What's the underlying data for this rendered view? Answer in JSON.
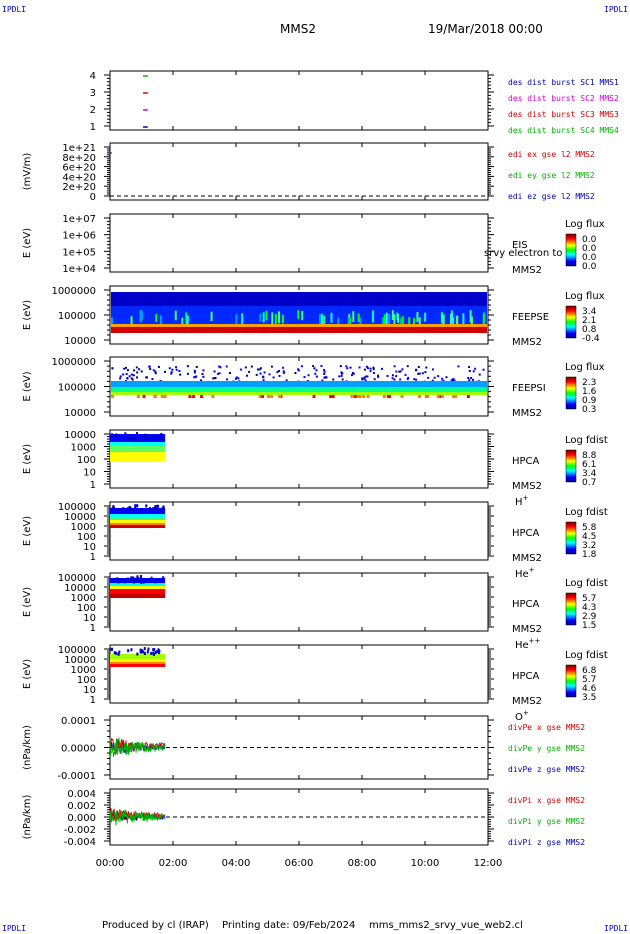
{
  "header": {
    "corner_tag": "IPDLI",
    "spacecraft": "MMS2",
    "date": "19/Mar/2018 00:00"
  },
  "footer": {
    "produced_by": "Produced by cl (IRAP)",
    "printing_date": "Printing date: 09/Feb/2024",
    "script": "mms_mms2_srvy_vue_web2.cl"
  },
  "colors": {
    "mms1": "#0000b0",
    "mms2": "#d000d0",
    "mms3": "#d00000",
    "mms4": "#00b000",
    "x": "#d00000",
    "y": "#00b000",
    "z": "#0000b0"
  },
  "chart_data": [
    {
      "type": "line",
      "ylim": [
        0.5,
        4.5
      ],
      "yticks": [
        "4",
        "3",
        "2",
        "1"
      ],
      "legend": [
        {
          "text": "des dist burst SC1 MMS1",
          "color": "mms1"
        },
        {
          "text": "des dist burst SC2 MMS2",
          "color": "mms2"
        },
        {
          "text": "des dist burst SC3 MMS3",
          "color": "mms3"
        },
        {
          "text": "des dist burst SC4 MMS4",
          "color": "mms4"
        }
      ],
      "series": [
        {
          "y": 4,
          "color": "mms4",
          "x": [
            1.05,
            1.2
          ]
        },
        {
          "y": 3,
          "color": "mms3",
          "x": [
            1.05,
            1.2
          ]
        },
        {
          "y": 2,
          "color": "mms2",
          "x": [
            1.05,
            1.2
          ]
        },
        {
          "y": 1,
          "color": "mms1",
          "x": [
            1.05,
            1.2
          ]
        }
      ]
    },
    {
      "type": "line",
      "ylabel": "(mV/m)",
      "yticks": [
        "1e+21",
        "8e+20",
        "6e+20",
        "4e+20",
        "2e+20",
        "0"
      ],
      "legend": [
        {
          "text": "edi ex gse l2 MMS2",
          "color": "x"
        },
        {
          "text": "edi ey gse l2 MMS2",
          "color": "y"
        },
        {
          "text": "edi ez gse l2 MMS2",
          "color": "z"
        }
      ]
    },
    {
      "type": "heatmap",
      "ylabel": "E (eV)",
      "yticks": [
        "1e+07",
        "1e+06",
        "1e+05",
        "1e+04"
      ],
      "instrument": "EIS",
      "overlap_text": "srvy electron to",
      "sc": "MMS2",
      "cbar_title": "Log flux",
      "cbar_ticks": [
        "0.0",
        "0.0",
        "0.0",
        "0.0"
      ]
    },
    {
      "type": "heatmap",
      "ylabel": "E (eV)",
      "yticks": [
        "1000000",
        "100000",
        "10000"
      ],
      "instrument": "FEEPSE",
      "sc": "MMS2",
      "cbar_title": "Log flux",
      "cbar_ticks": [
        "3.4",
        "2.1",
        "0.8",
        "-0.4"
      ]
    },
    {
      "type": "heatmap",
      "ylabel": "E (eV)",
      "yticks": [
        "1000000",
        "100000",
        "10000"
      ],
      "instrument": "FEEPSI",
      "sc": "MMS2",
      "cbar_title": "Log flux",
      "cbar_ticks": [
        "2.3",
        "1.6",
        "0.9",
        "0.3"
      ]
    },
    {
      "type": "heatmap",
      "ylabel": "E (eV)",
      "yticks": [
        "10000",
        "1000",
        "100",
        "10",
        "1"
      ],
      "instrument": "HPCA",
      "sc": "MMS2",
      "species": "H",
      "species_sup": "+",
      "cbar_title": "Log fdist",
      "cbar_ticks": [
        "8.8",
        "6.1",
        "3.4",
        "0.7"
      ]
    },
    {
      "type": "heatmap",
      "ylabel": "E (eV)",
      "yticks": [
        "100000",
        "10000",
        "1000",
        "100",
        "10",
        "1"
      ],
      "instrument": "HPCA",
      "sc": "MMS2",
      "species": "He",
      "species_sup": "+",
      "cbar_title": "Log fdist",
      "cbar_ticks": [
        "5.8",
        "4.5",
        "3.2",
        "1.8"
      ]
    },
    {
      "type": "heatmap",
      "ylabel": "E (eV)",
      "yticks": [
        "100000",
        "10000",
        "1000",
        "100",
        "10",
        "1"
      ],
      "instrument": "HPCA",
      "sc": "MMS2",
      "species": "He",
      "species_sup": "++",
      "cbar_title": "Log fdist",
      "cbar_ticks": [
        "5.7",
        "4.3",
        "2.9",
        "1.5"
      ]
    },
    {
      "type": "heatmap",
      "ylabel": "E (eV)",
      "yticks": [
        "100000",
        "10000",
        "1000",
        "100",
        "10",
        "1"
      ],
      "instrument": "HPCA",
      "sc": "MMS2",
      "species": "O",
      "species_sup": "+",
      "cbar_title": "Log fdist",
      "cbar_ticks": [
        "6.8",
        "5.7",
        "4.6",
        "3.5"
      ]
    },
    {
      "type": "line",
      "ylabel": "(nPa/km)",
      "ylim": [
        -0.00015,
        0.00015
      ],
      "yticks": [
        "0.0001",
        "0.0000",
        "-0.0001"
      ],
      "legend": [
        {
          "text": "divPe x gse MMS2",
          "color": "x"
        },
        {
          "text": "divPe y gse MMS2",
          "color": "y"
        },
        {
          "text": "divPe z gse MMS2",
          "color": "z"
        }
      ]
    },
    {
      "type": "line",
      "ylabel": "(nPa/km)",
      "ylim": [
        -0.005,
        0.005
      ],
      "yticks": [
        "0.004",
        "0.002",
        "0.000",
        "-0.002",
        "-0.004"
      ],
      "legend": [
        {
          "text": "divPi x gse MMS2",
          "color": "x"
        },
        {
          "text": "divPi y gse MMS2",
          "color": "y"
        },
        {
          "text": "divPi z gse MMS2",
          "color": "z"
        }
      ]
    }
  ],
  "xaxis": {
    "range_hours": [
      0,
      12
    ],
    "ticks": [
      "00:00",
      "02:00",
      "04:00",
      "06:00",
      "08:00",
      "10:00",
      "12:00"
    ]
  }
}
